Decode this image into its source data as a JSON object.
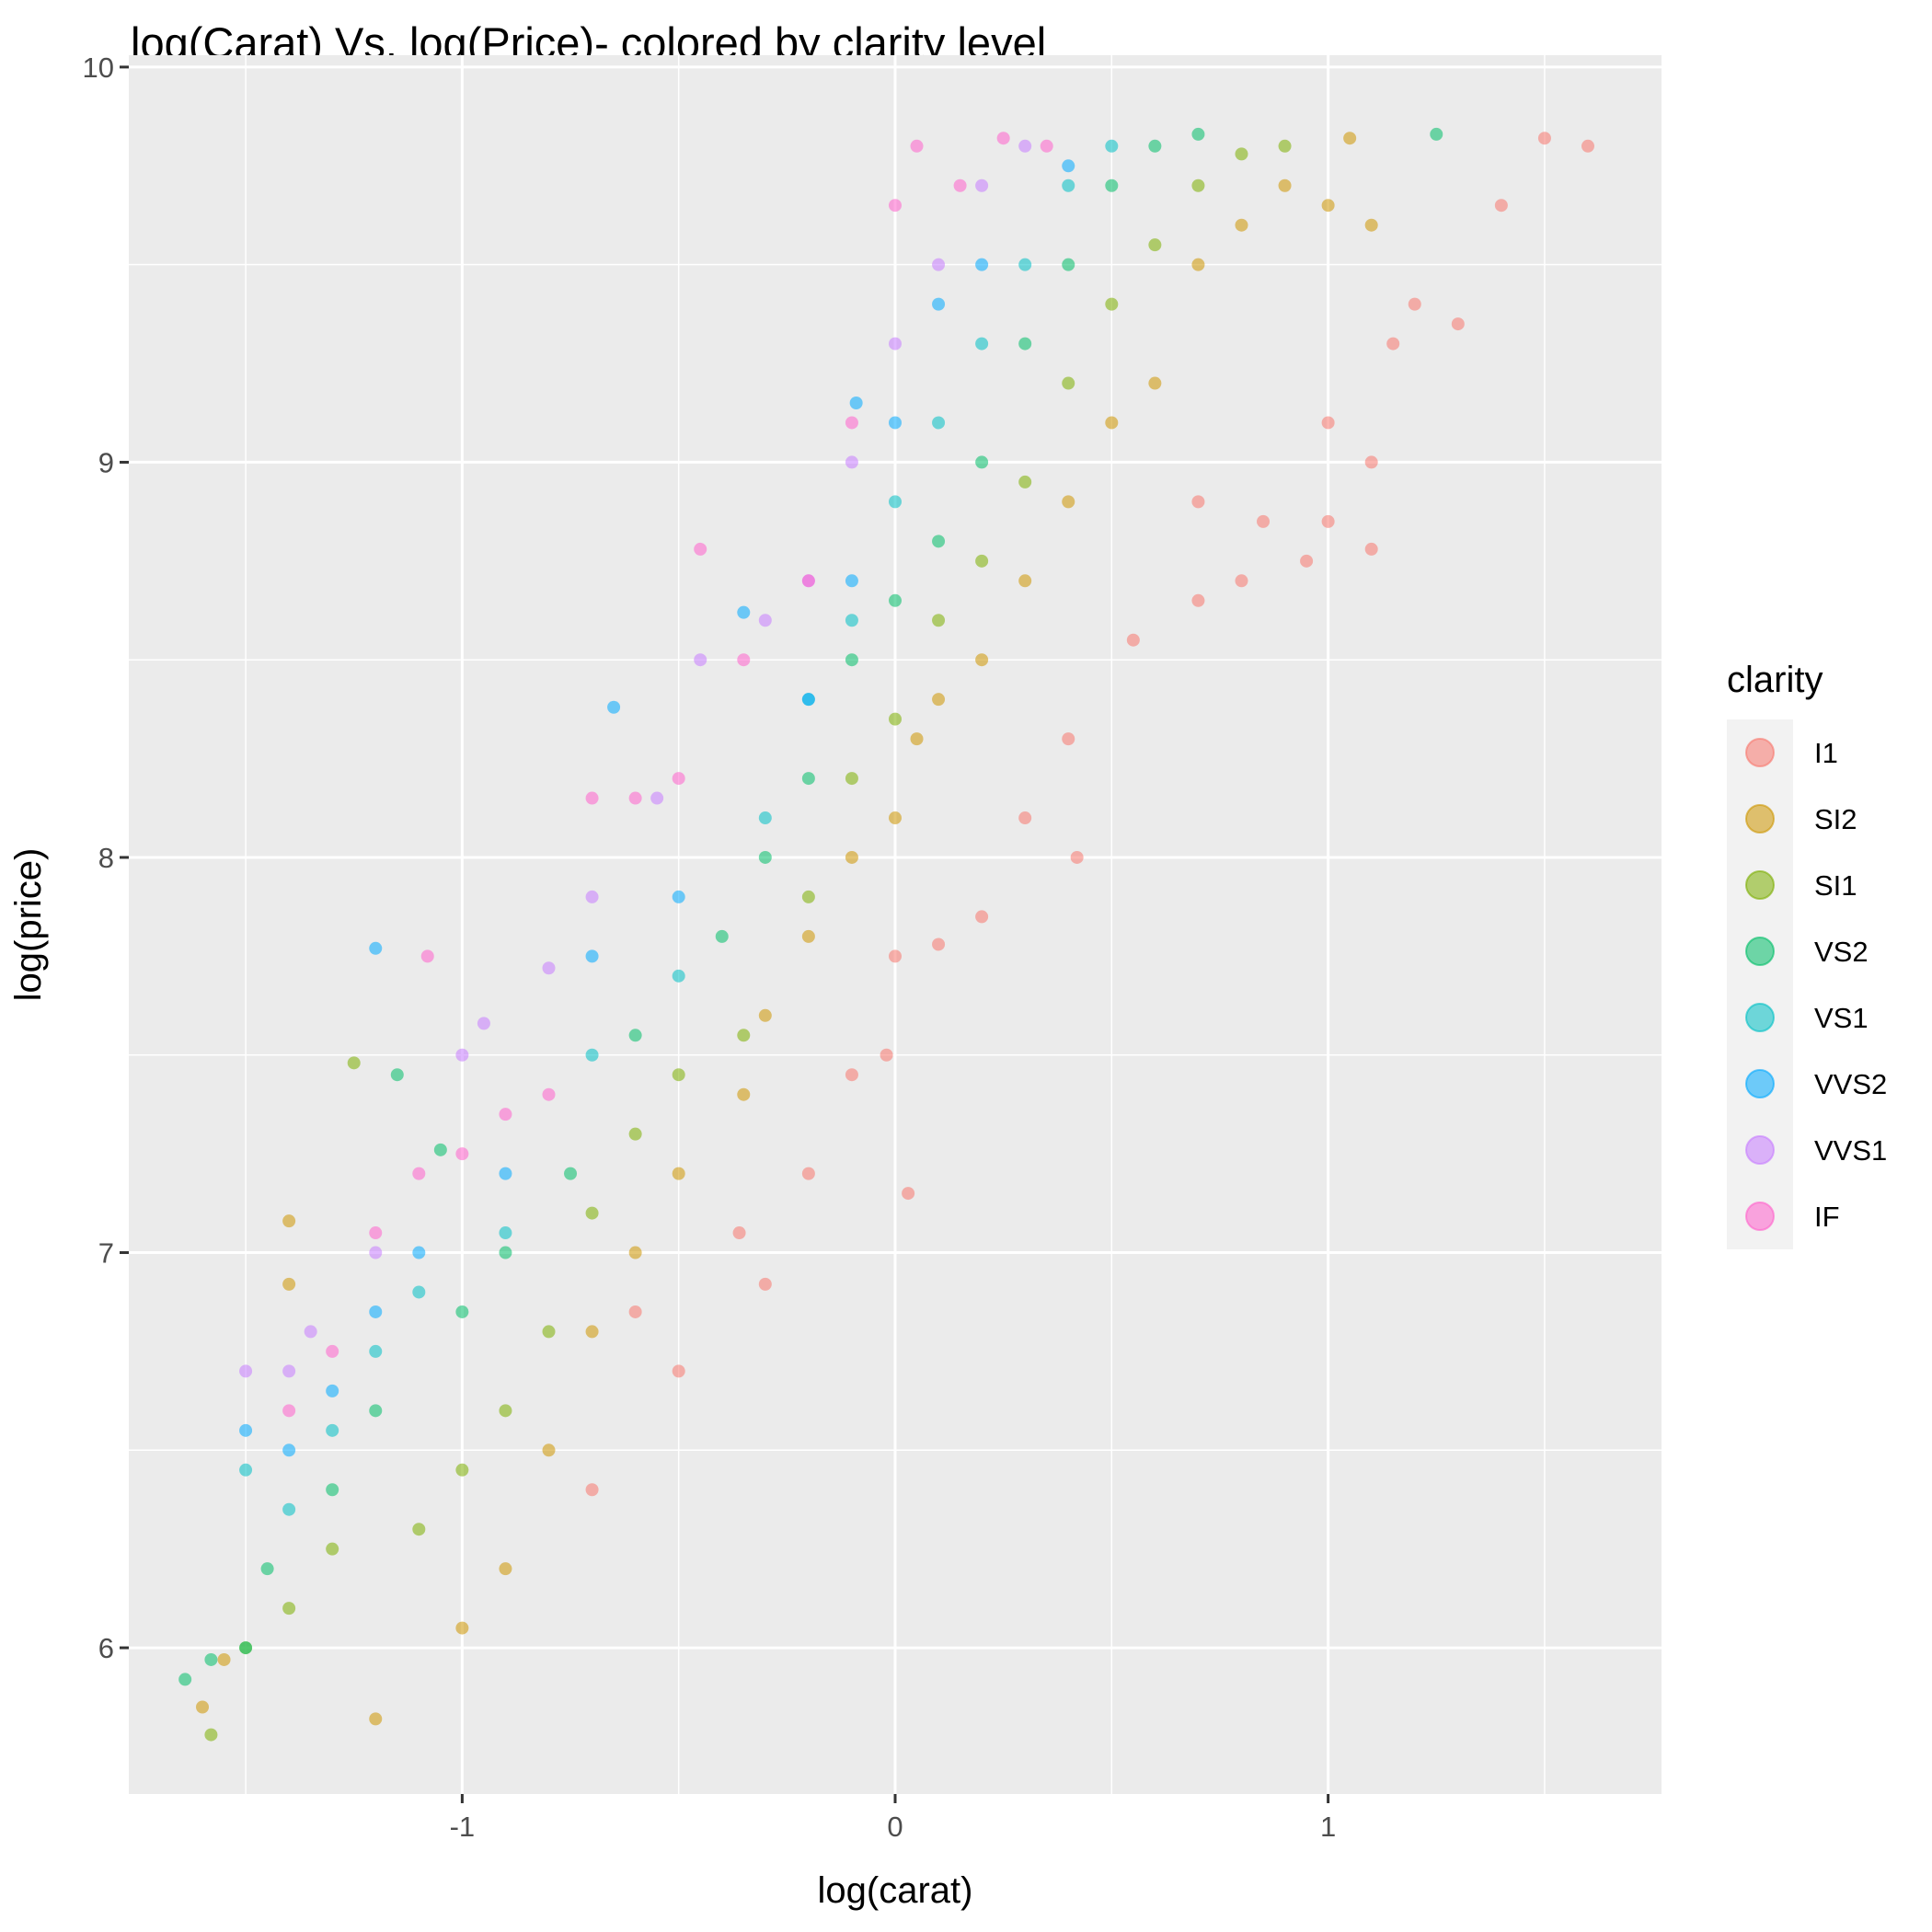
{
  "chart_data": {
    "type": "scatter",
    "title": "log(Carat) Vs. log(Price)- colored by clarity level",
    "xlabel": "log(carat)",
    "ylabel": "log(price)",
    "xlim": [
      -1.77,
      1.77
    ],
    "ylim": [
      5.63,
      10.03
    ],
    "x_ticks": [
      -1,
      0,
      1
    ],
    "x_tick_labels": [
      "-1",
      "0",
      "1"
    ],
    "y_ticks": [
      6,
      7,
      8,
      9,
      10
    ],
    "y_tick_labels": [
      "6",
      "7",
      "8",
      "9",
      "10"
    ],
    "grid": true,
    "legend": {
      "title": "clarity",
      "position": "right",
      "entries": [
        "I1",
        "SI2",
        "SI1",
        "VS2",
        "VS1",
        "VVS2",
        "VVS1",
        "IF"
      ]
    },
    "colors": {
      "I1": "#F8766D",
      "SI2": "#CD9600",
      "SI1": "#7CAE00",
      "VS2": "#00BE67",
      "VS1": "#00BFC4",
      "VVS2": "#00A9FF",
      "VVS1": "#C77CFF",
      "IF": "#FF61CC"
    },
    "series": [
      {
        "name": "I1",
        "points": [
          [
            -0.36,
            7.05
          ],
          [
            -0.3,
            6.92
          ],
          [
            -0.2,
            7.2
          ],
          [
            -0.1,
            7.45
          ],
          [
            -0.02,
            7.5
          ],
          [
            0.0,
            7.75
          ],
          [
            0.03,
            7.15
          ],
          [
            0.1,
            7.78
          ],
          [
            0.2,
            7.85
          ],
          [
            0.3,
            8.1
          ],
          [
            0.4,
            8.3
          ],
          [
            0.42,
            8.0
          ],
          [
            0.55,
            8.55
          ],
          [
            0.7,
            8.65
          ],
          [
            0.7,
            8.9
          ],
          [
            0.8,
            8.7
          ],
          [
            0.85,
            8.85
          ],
          [
            0.95,
            8.75
          ],
          [
            1.0,
            8.85
          ],
          [
            1.0,
            9.1
          ],
          [
            1.1,
            8.78
          ],
          [
            1.1,
            9.0
          ],
          [
            1.15,
            9.3
          ],
          [
            1.2,
            9.4
          ],
          [
            1.3,
            9.35
          ],
          [
            1.4,
            9.65
          ],
          [
            1.5,
            9.82
          ],
          [
            1.6,
            9.8
          ],
          [
            -0.7,
            6.4
          ],
          [
            -0.6,
            6.85
          ],
          [
            -0.5,
            6.7
          ]
        ]
      },
      {
        "name": "SI2",
        "points": [
          [
            -1.6,
            5.85
          ],
          [
            -1.55,
            5.97
          ],
          [
            -1.4,
            6.92
          ],
          [
            -1.4,
            7.08
          ],
          [
            -1.2,
            5.82
          ],
          [
            -1.0,
            6.05
          ],
          [
            -0.9,
            6.2
          ],
          [
            -0.8,
            6.5
          ],
          [
            -0.7,
            6.8
          ],
          [
            -0.6,
            7.0
          ],
          [
            -0.5,
            7.2
          ],
          [
            -0.35,
            7.4
          ],
          [
            -0.3,
            7.6
          ],
          [
            -0.2,
            7.8
          ],
          [
            -0.1,
            8.0
          ],
          [
            0.0,
            8.1
          ],
          [
            0.05,
            8.3
          ],
          [
            0.1,
            8.4
          ],
          [
            0.2,
            8.5
          ],
          [
            0.3,
            8.7
          ],
          [
            0.4,
            8.9
          ],
          [
            0.5,
            9.1
          ],
          [
            0.6,
            9.2
          ],
          [
            0.7,
            9.5
          ],
          [
            0.8,
            9.6
          ],
          [
            0.9,
            9.7
          ],
          [
            1.0,
            9.65
          ],
          [
            1.05,
            9.82
          ],
          [
            1.1,
            9.6
          ]
        ]
      },
      {
        "name": "SI1",
        "points": [
          [
            -1.58,
            5.78
          ],
          [
            -1.5,
            6.0
          ],
          [
            -1.4,
            6.1
          ],
          [
            -1.3,
            6.25
          ],
          [
            -1.25,
            7.48
          ],
          [
            -1.1,
            6.3
          ],
          [
            -1.0,
            6.45
          ],
          [
            -0.9,
            6.6
          ],
          [
            -0.8,
            6.8
          ],
          [
            -0.7,
            7.1
          ],
          [
            -0.6,
            7.3
          ],
          [
            -0.5,
            7.45
          ],
          [
            -0.35,
            7.55
          ],
          [
            -0.2,
            7.9
          ],
          [
            -0.1,
            8.2
          ],
          [
            0.0,
            8.35
          ],
          [
            0.1,
            8.6
          ],
          [
            0.2,
            8.75
          ],
          [
            0.3,
            8.95
          ],
          [
            0.4,
            9.2
          ],
          [
            0.5,
            9.4
          ],
          [
            0.6,
            9.55
          ],
          [
            0.7,
            9.7
          ],
          [
            0.8,
            9.78
          ],
          [
            0.9,
            9.8
          ]
        ]
      },
      {
        "name": "VS2",
        "points": [
          [
            -1.64,
            5.92
          ],
          [
            -1.58,
            5.97
          ],
          [
            -1.5,
            6.0
          ],
          [
            -1.45,
            6.2
          ],
          [
            -1.3,
            6.4
          ],
          [
            -1.2,
            6.6
          ],
          [
            -1.15,
            7.45
          ],
          [
            -1.05,
            7.26
          ],
          [
            -1.0,
            6.85
          ],
          [
            -0.9,
            7.0
          ],
          [
            -0.75,
            7.2
          ],
          [
            -0.6,
            7.55
          ],
          [
            -0.4,
            7.8
          ],
          [
            -0.3,
            8.0
          ],
          [
            -0.2,
            8.2
          ],
          [
            -0.1,
            8.5
          ],
          [
            0.0,
            8.65
          ],
          [
            0.1,
            8.8
          ],
          [
            0.2,
            9.0
          ],
          [
            0.3,
            9.3
          ],
          [
            0.4,
            9.5
          ],
          [
            0.5,
            9.7
          ],
          [
            0.6,
            9.8
          ],
          [
            0.7,
            9.83
          ],
          [
            1.25,
            9.83
          ]
        ]
      },
      {
        "name": "VS1",
        "points": [
          [
            -1.5,
            6.45
          ],
          [
            -1.4,
            6.35
          ],
          [
            -1.3,
            6.55
          ],
          [
            -1.2,
            6.75
          ],
          [
            -1.1,
            6.9
          ],
          [
            -0.9,
            7.05
          ],
          [
            -0.7,
            7.5
          ],
          [
            -0.5,
            7.7
          ],
          [
            -0.3,
            8.1
          ],
          [
            -0.2,
            8.4
          ],
          [
            -0.1,
            8.6
          ],
          [
            0.0,
            8.9
          ],
          [
            0.1,
            9.1
          ],
          [
            0.2,
            9.3
          ],
          [
            0.3,
            9.5
          ],
          [
            0.4,
            9.7
          ],
          [
            0.5,
            9.8
          ]
        ]
      },
      {
        "name": "VVS2",
        "points": [
          [
            -1.5,
            6.55
          ],
          [
            -1.4,
            6.5
          ],
          [
            -1.3,
            6.65
          ],
          [
            -1.2,
            6.85
          ],
          [
            -1.2,
            7.77
          ],
          [
            -1.1,
            7.0
          ],
          [
            -0.9,
            7.2
          ],
          [
            -0.7,
            7.75
          ],
          [
            -0.65,
            8.38
          ],
          [
            -0.5,
            7.9
          ],
          [
            -0.35,
            8.62
          ],
          [
            -0.2,
            8.4
          ],
          [
            -0.1,
            8.7
          ],
          [
            -0.09,
            9.15
          ],
          [
            0.0,
            9.1
          ],
          [
            0.1,
            9.4
          ],
          [
            0.2,
            9.5
          ],
          [
            0.4,
            9.75
          ]
        ]
      },
      {
        "name": "VVS1",
        "points": [
          [
            -1.5,
            6.7
          ],
          [
            -1.4,
            6.7
          ],
          [
            -1.35,
            6.8
          ],
          [
            -1.2,
            7.0
          ],
          [
            -1.0,
            7.5
          ],
          [
            -0.95,
            7.58
          ],
          [
            -0.8,
            7.72
          ],
          [
            -0.7,
            7.9
          ],
          [
            -0.55,
            8.15
          ],
          [
            -0.45,
            8.5
          ],
          [
            -0.3,
            8.6
          ],
          [
            -0.2,
            8.7
          ],
          [
            -0.1,
            9.0
          ],
          [
            0.0,
            9.3
          ],
          [
            0.1,
            9.5
          ],
          [
            0.2,
            9.7
          ],
          [
            0.3,
            9.8
          ]
        ]
      },
      {
        "name": "IF",
        "points": [
          [
            -1.4,
            6.6
          ],
          [
            -1.3,
            6.75
          ],
          [
            -1.2,
            7.05
          ],
          [
            -1.1,
            7.2
          ],
          [
            -1.08,
            7.75
          ],
          [
            -1.0,
            7.25
          ],
          [
            -0.9,
            7.35
          ],
          [
            -0.8,
            7.4
          ],
          [
            -0.7,
            8.15
          ],
          [
            -0.6,
            8.15
          ],
          [
            -0.5,
            8.2
          ],
          [
            -0.45,
            8.78
          ],
          [
            -0.35,
            8.5
          ],
          [
            -0.2,
            8.7
          ],
          [
            -0.1,
            9.1
          ],
          [
            0.0,
            9.65
          ],
          [
            0.05,
            9.8
          ],
          [
            0.15,
            9.7
          ],
          [
            0.25,
            9.82
          ],
          [
            0.35,
            9.8
          ]
        ]
      }
    ]
  }
}
